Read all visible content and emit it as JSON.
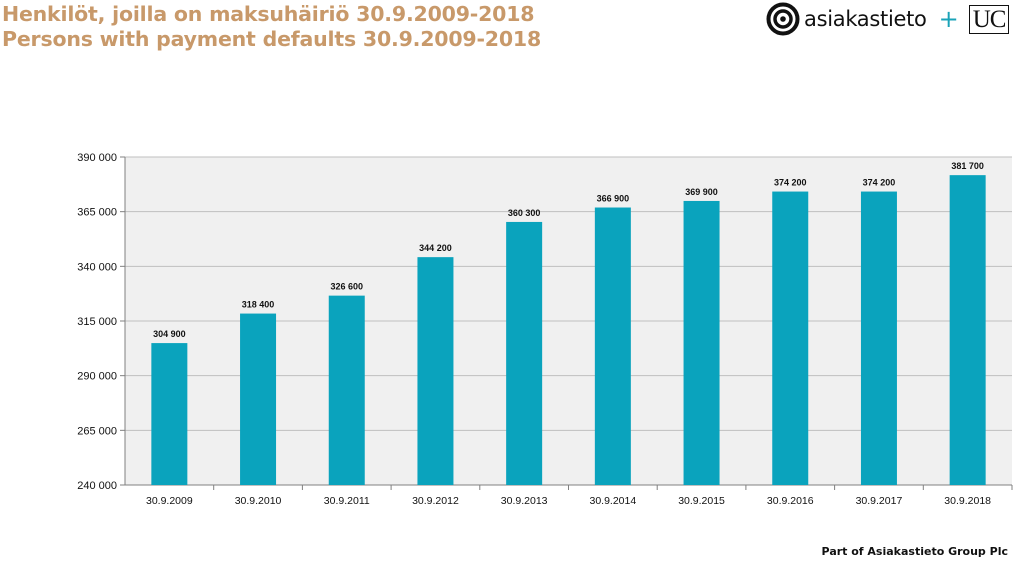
{
  "header": {
    "title_fi": "Henkilöt, joilla on maksuhäiriö 30.9.2009-2018",
    "title_en": "Persons with payment defaults 30.9.2009-2018"
  },
  "logo": {
    "brand_text": "asiakastieto",
    "plus": "+",
    "partner_text": "UC",
    "icon": "target-rings-icon"
  },
  "footer": {
    "text": "Part of Asiakastieto Group Plc"
  },
  "colors": {
    "bar": "#0aa3bd",
    "title": "#c8996a",
    "plot_background": "#f0f0f0",
    "gridline": "#bfbfbf",
    "accent": "#1aa3b8"
  },
  "chart_data": {
    "type": "bar",
    "categories": [
      "30.9.2009",
      "30.9.2010",
      "30.9.2011",
      "30.9.2012",
      "30.9.2013",
      "30.9.2014",
      "30.9.2015",
      "30.9.2016",
      "30.9.2017",
      "30.9.2018"
    ],
    "values": [
      304900,
      318400,
      326600,
      344200,
      360300,
      366900,
      369900,
      374200,
      374200,
      381700
    ],
    "value_labels": [
      "304 900",
      "318 400",
      "326 600",
      "344 200",
      "360 300",
      "366 900",
      "369 900",
      "374 200",
      "374 200",
      "381 700"
    ],
    "ylim": [
      240000,
      390000
    ],
    "yticks": [
      240000,
      265000,
      290000,
      315000,
      340000,
      365000,
      390000
    ],
    "ytick_labels": [
      "240 000",
      "265 000",
      "290 000",
      "315 000",
      "340 000",
      "365 000",
      "390 000"
    ],
    "grid": true,
    "legend": "none",
    "xlabel": "",
    "ylabel": ""
  }
}
